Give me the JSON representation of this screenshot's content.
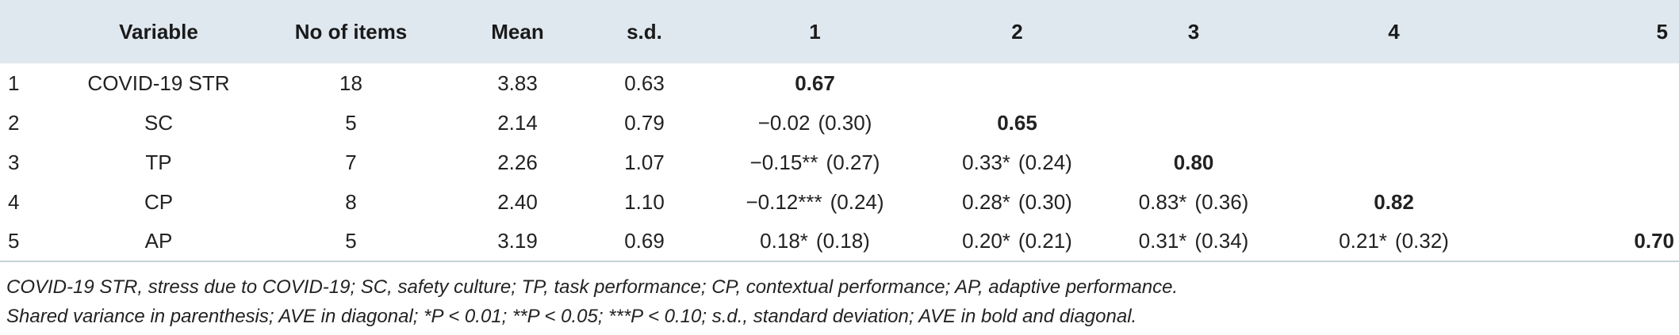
{
  "table": {
    "headers": {
      "index": "",
      "variable": "Variable",
      "items": "No of items",
      "mean": "Mean",
      "sd": "s.d.",
      "c1": "1",
      "c2": "2",
      "c3": "3",
      "c4": "4",
      "c5": "5"
    },
    "rows": [
      {
        "index": "1",
        "variable": "COVID-19 STR",
        "items": "18",
        "mean": "3.83",
        "sd": "0.63",
        "c1": {
          "value": "0.67",
          "shared": ""
        },
        "c2": {
          "value": "",
          "shared": ""
        },
        "c3": {
          "value": "",
          "shared": ""
        },
        "c4": {
          "value": "",
          "shared": ""
        },
        "c5": {
          "value": "",
          "shared": ""
        }
      },
      {
        "index": "2",
        "variable": "SC",
        "items": "5",
        "mean": "2.14",
        "sd": "0.79",
        "c1": {
          "value": "−0.02",
          "shared": "(0.30)"
        },
        "c2": {
          "value": "0.65",
          "shared": ""
        },
        "c3": {
          "value": "",
          "shared": ""
        },
        "c4": {
          "value": "",
          "shared": ""
        },
        "c5": {
          "value": "",
          "shared": ""
        }
      },
      {
        "index": "3",
        "variable": "TP",
        "items": "7",
        "mean": "2.26",
        "sd": "1.07",
        "c1": {
          "value": "−0.15**",
          "shared": "(0.27)"
        },
        "c2": {
          "value": "0.33*",
          "shared": "(0.24)"
        },
        "c3": {
          "value": "0.80",
          "shared": ""
        },
        "c4": {
          "value": "",
          "shared": ""
        },
        "c5": {
          "value": "",
          "shared": ""
        }
      },
      {
        "index": "4",
        "variable": "CP",
        "items": "8",
        "mean": "2.40",
        "sd": "1.10",
        "c1": {
          "value": "−0.12***",
          "shared": "(0.24)"
        },
        "c2": {
          "value": "0.28*",
          "shared": "(0.30)"
        },
        "c3": {
          "value": "0.83*",
          "shared": "(0.36)"
        },
        "c4": {
          "value": "0.82",
          "shared": ""
        },
        "c5": {
          "value": "",
          "shared": ""
        }
      },
      {
        "index": "5",
        "variable": "AP",
        "items": "5",
        "mean": "3.19",
        "sd": "0.69",
        "c1": {
          "value": "0.18*",
          "shared": "(0.18)"
        },
        "c2": {
          "value": "0.20*",
          "shared": "(0.21)"
        },
        "c3": {
          "value": "0.31*",
          "shared": "(0.34)"
        },
        "c4": {
          "value": "0.21*",
          "shared": "(0.32)"
        },
        "c5": {
          "value": "0.70",
          "shared": ""
        }
      }
    ]
  },
  "notes": {
    "line1": "COVID-19 STR, stress due to COVID-19; SC, safety culture; TP, task performance; CP, contextual performance; AP, adaptive performance.",
    "line2": "Shared variance in parenthesis; AVE in diagonal; *P < 0.01; **P < 0.05; ***P < 0.10; s.d., standard deviation; AVE in bold and diagonal."
  },
  "colors": {
    "header_background": "#dfe8ee",
    "text": "#222222",
    "rule": "#c7d0d6"
  }
}
